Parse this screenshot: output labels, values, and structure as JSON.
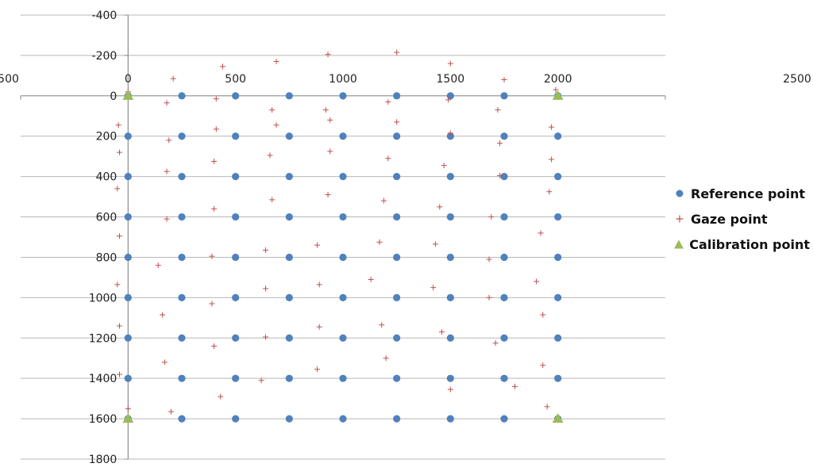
{
  "chart_data": {
    "type": "scatter",
    "title": "",
    "xlabel": "",
    "ylabel": "",
    "xlim": [
      -500,
      2500
    ],
    "ylim": [
      -400,
      1800
    ],
    "y_inverted": true,
    "x_ticks": [
      -500,
      0,
      500,
      1000,
      1500,
      2000,
      2500
    ],
    "y_ticks": [
      -400,
      -200,
      0,
      200,
      400,
      600,
      800,
      1000,
      1200,
      1400,
      1600,
      1800
    ],
    "x_axis_position": "top",
    "grid": "horizontal",
    "legend_position": "right",
    "series": [
      {
        "name": "Reference point",
        "marker": "circle",
        "color": "#4f81bd",
        "grid_x": [
          0,
          250,
          500,
          750,
          1000,
          1250,
          1500,
          1750,
          2000
        ],
        "grid_y": [
          0,
          200,
          400,
          600,
          800,
          1000,
          1200,
          1400,
          1600
        ]
      },
      {
        "name": "Gaze point",
        "marker": "plus",
        "color": "#c0504d",
        "points": [
          [
            0,
            -20
          ],
          [
            210,
            -85
          ],
          [
            440,
            -145
          ],
          [
            690,
            -170
          ],
          [
            930,
            -205
          ],
          [
            1250,
            -215
          ],
          [
            1500,
            -160
          ],
          [
            1750,
            -80
          ],
          [
            1990,
            -30
          ],
          [
            180,
            35
          ],
          [
            410,
            15
          ],
          [
            670,
            70
          ],
          [
            920,
            70
          ],
          [
            1210,
            30
          ],
          [
            1490,
            20
          ],
          [
            1720,
            70
          ],
          [
            -45,
            145
          ],
          [
            190,
            220
          ],
          [
            410,
            165
          ],
          [
            690,
            145
          ],
          [
            940,
            120
          ],
          [
            1250,
            130
          ],
          [
            1500,
            185
          ],
          [
            1730,
            235
          ],
          [
            1970,
            155
          ],
          [
            -40,
            280
          ],
          [
            400,
            325
          ],
          [
            660,
            295
          ],
          [
            940,
            275
          ],
          [
            1210,
            310
          ],
          [
            1470,
            345
          ],
          [
            1730,
            395
          ],
          [
            1970,
            315
          ],
          [
            -50,
            460
          ],
          [
            180,
            375
          ],
          [
            400,
            560
          ],
          [
            670,
            515
          ],
          [
            930,
            490
          ],
          [
            1190,
            520
          ],
          [
            1450,
            550
          ],
          [
            1690,
            600
          ],
          [
            1960,
            475
          ],
          [
            -40,
            695
          ],
          [
            180,
            610
          ],
          [
            640,
            765
          ],
          [
            880,
            740
          ],
          [
            1170,
            725
          ],
          [
            1430,
            735
          ],
          [
            1680,
            810
          ],
          [
            1920,
            680
          ],
          [
            -50,
            935
          ],
          [
            140,
            840
          ],
          [
            390,
            795
          ],
          [
            640,
            955
          ],
          [
            890,
            935
          ],
          [
            1130,
            910
          ],
          [
            1420,
            950
          ],
          [
            1680,
            1000
          ],
          [
            1900,
            920
          ],
          [
            -40,
            1140
          ],
          [
            160,
            1085
          ],
          [
            390,
            1030
          ],
          [
            640,
            1195
          ],
          [
            890,
            1145
          ],
          [
            1180,
            1135
          ],
          [
            1460,
            1170
          ],
          [
            1710,
            1225
          ],
          [
            1930,
            1085
          ],
          [
            -40,
            1380
          ],
          [
            170,
            1320
          ],
          [
            400,
            1240
          ],
          [
            620,
            1410
          ],
          [
            880,
            1355
          ],
          [
            1200,
            1300
          ],
          [
            1500,
            1455
          ],
          [
            1800,
            1440
          ],
          [
            1930,
            1335
          ],
          [
            0,
            1550
          ],
          [
            200,
            1565
          ],
          [
            430,
            1490
          ],
          [
            1950,
            1540
          ]
        ]
      },
      {
        "name": "Calibration point",
        "marker": "triangle",
        "color": "#9bbb59",
        "points": [
          [
            0,
            0
          ],
          [
            2000,
            0
          ],
          [
            0,
            1600
          ],
          [
            2000,
            1600
          ]
        ]
      }
    ]
  }
}
